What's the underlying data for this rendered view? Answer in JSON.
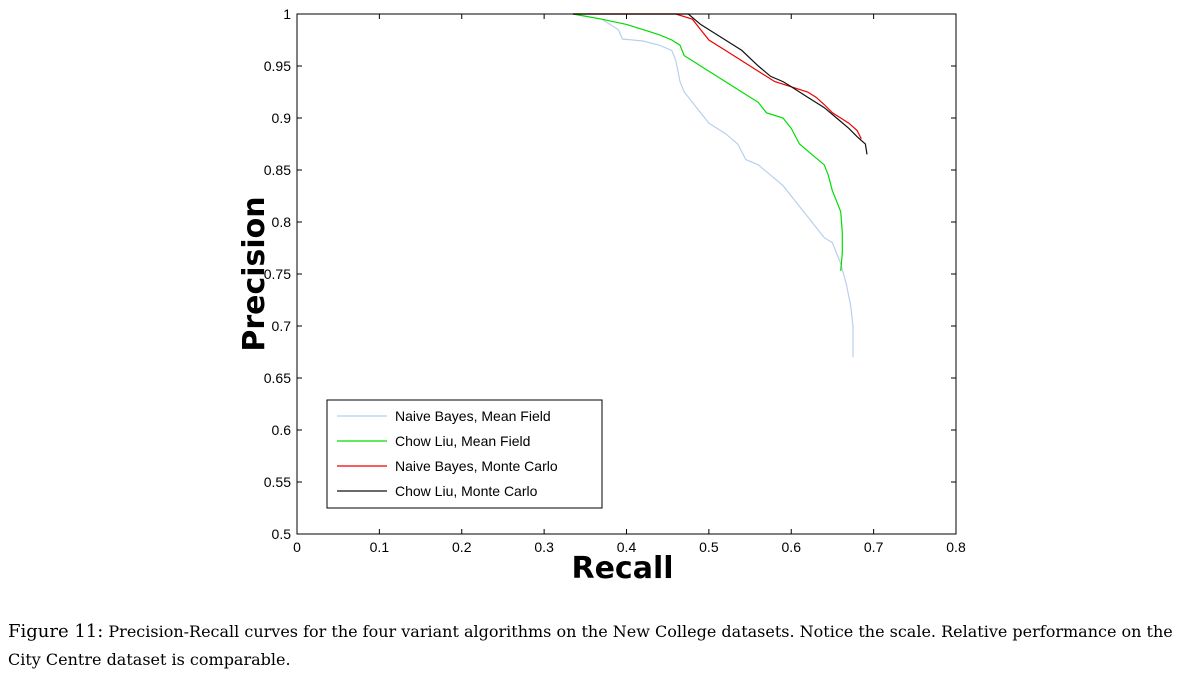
{
  "chart_data": {
    "type": "line",
    "title": "",
    "xlabel": "Recall",
    "ylabel": "Precision",
    "xlim": [
      0,
      0.8
    ],
    "ylim": [
      0.5,
      1
    ],
    "xticks": [
      "0",
      "0.1",
      "0.2",
      "0.3",
      "0.4",
      "0.5",
      "0.6",
      "0.7",
      "0.8"
    ],
    "yticks": [
      "0.5",
      "0.55",
      "0.6",
      "0.65",
      "0.7",
      "0.75",
      "0.8",
      "0.85",
      "0.9",
      "0.95",
      "1"
    ],
    "grid": false,
    "legend_position": "bottom-left",
    "series": [
      {
        "name": "Naive Bayes, Mean Field",
        "color": "#b8d0ec",
        "points": [
          [
            0.335,
            1
          ],
          [
            0.37,
            0.995
          ],
          [
            0.39,
            0.985
          ],
          [
            0.395,
            0.976
          ],
          [
            0.42,
            0.974
          ],
          [
            0.44,
            0.97
          ],
          [
            0.455,
            0.965
          ],
          [
            0.46,
            0.955
          ],
          [
            0.465,
            0.935
          ],
          [
            0.47,
            0.925
          ],
          [
            0.48,
            0.915
          ],
          [
            0.49,
            0.905
          ],
          [
            0.5,
            0.895
          ],
          [
            0.52,
            0.885
          ],
          [
            0.535,
            0.875
          ],
          [
            0.545,
            0.86
          ],
          [
            0.56,
            0.855
          ],
          [
            0.575,
            0.845
          ],
          [
            0.59,
            0.835
          ],
          [
            0.605,
            0.82
          ],
          [
            0.62,
            0.805
          ],
          [
            0.63,
            0.795
          ],
          [
            0.64,
            0.785
          ],
          [
            0.65,
            0.78
          ],
          [
            0.66,
            0.76
          ],
          [
            0.667,
            0.74
          ],
          [
            0.672,
            0.72
          ],
          [
            0.675,
            0.7
          ],
          [
            0.675,
            0.67
          ]
        ]
      },
      {
        "name": "Chow Liu, Mean Field",
        "color": "#00dd00",
        "points": [
          [
            0.335,
            1
          ],
          [
            0.37,
            0.995
          ],
          [
            0.4,
            0.99
          ],
          [
            0.42,
            0.985
          ],
          [
            0.44,
            0.98
          ],
          [
            0.455,
            0.975
          ],
          [
            0.465,
            0.97
          ],
          [
            0.47,
            0.96
          ],
          [
            0.48,
            0.955
          ],
          [
            0.5,
            0.945
          ],
          [
            0.52,
            0.935
          ],
          [
            0.54,
            0.925
          ],
          [
            0.56,
            0.915
          ],
          [
            0.57,
            0.905
          ],
          [
            0.59,
            0.9
          ],
          [
            0.6,
            0.89
          ],
          [
            0.61,
            0.875
          ],
          [
            0.625,
            0.865
          ],
          [
            0.64,
            0.855
          ],
          [
            0.645,
            0.845
          ],
          [
            0.65,
            0.83
          ],
          [
            0.655,
            0.82
          ],
          [
            0.66,
            0.81
          ],
          [
            0.662,
            0.79
          ],
          [
            0.662,
            0.77
          ],
          [
            0.66,
            0.753
          ]
        ]
      },
      {
        "name": "Naive Bayes, Monte Carlo",
        "color": "#ee0000",
        "points": [
          [
            0.335,
            1
          ],
          [
            0.46,
            1
          ],
          [
            0.48,
            0.995
          ],
          [
            0.49,
            0.985
          ],
          [
            0.5,
            0.975
          ],
          [
            0.52,
            0.965
          ],
          [
            0.54,
            0.955
          ],
          [
            0.56,
            0.945
          ],
          [
            0.58,
            0.935
          ],
          [
            0.6,
            0.93
          ],
          [
            0.62,
            0.925
          ],
          [
            0.63,
            0.92
          ],
          [
            0.64,
            0.913
          ],
          [
            0.65,
            0.905
          ],
          [
            0.66,
            0.9
          ],
          [
            0.67,
            0.895
          ],
          [
            0.68,
            0.888
          ],
          [
            0.685,
            0.88
          ]
        ]
      },
      {
        "name": "Chow Liu, Monte Carlo",
        "color": "#111111",
        "points": [
          [
            0.335,
            1
          ],
          [
            0.475,
            1
          ],
          [
            0.49,
            0.99
          ],
          [
            0.5,
            0.985
          ],
          [
            0.52,
            0.975
          ],
          [
            0.54,
            0.965
          ],
          [
            0.56,
            0.95
          ],
          [
            0.575,
            0.94
          ],
          [
            0.59,
            0.935
          ],
          [
            0.6,
            0.93
          ],
          [
            0.62,
            0.92
          ],
          [
            0.64,
            0.91
          ],
          [
            0.655,
            0.9
          ],
          [
            0.67,
            0.89
          ],
          [
            0.68,
            0.882
          ],
          [
            0.69,
            0.875
          ],
          [
            0.692,
            0.865
          ]
        ]
      }
    ]
  },
  "caption": {
    "label": "Figure 11:",
    "text": "Precision-Recall curves for the four variant algorithms on the New College datasets. Notice the scale. Relative performance on the City Centre dataset is comparable."
  }
}
